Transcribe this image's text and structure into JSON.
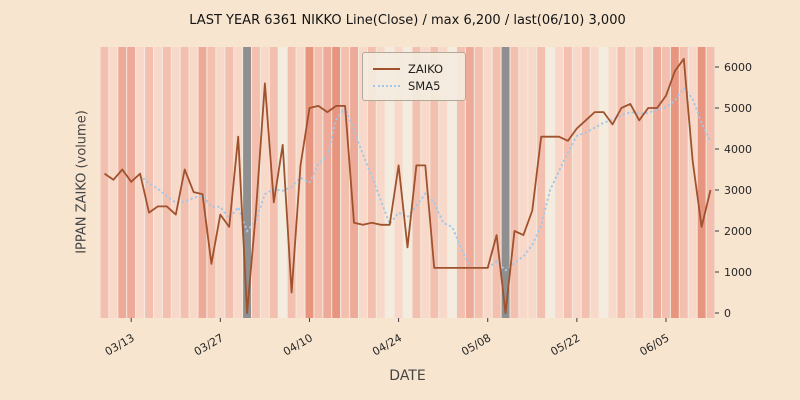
{
  "chart_data": {
    "type": "line",
    "title": "LAST YEAR 6361 NIKKO Line(Close) / max 6,200 / last(06/10) 3,000",
    "xlabel": "DATE",
    "ylabel": "IPPAN ZAIKO (volume)",
    "ylim": [
      0,
      6500
    ],
    "yticks": [
      0,
      1000,
      2000,
      3000,
      4000,
      5000,
      6000
    ],
    "xticks": [
      "03/13",
      "03/27",
      "04/10",
      "04/24",
      "05/08",
      "05/22",
      "06/05"
    ],
    "legend_position": "upper center",
    "grid": false,
    "max_value": 6200,
    "last_point": {
      "date": "06/10",
      "value": 3000
    },
    "x": [
      "03/08",
      "03/09",
      "03/10",
      "03/13",
      "03/14",
      "03/15",
      "03/16",
      "03/17",
      "03/20",
      "03/21",
      "03/22",
      "03/23",
      "03/24",
      "03/27",
      "03/28",
      "03/29",
      "03/30",
      "03/31",
      "04/03",
      "04/04",
      "04/05",
      "04/06",
      "04/07",
      "04/10",
      "04/11",
      "04/12",
      "04/13",
      "04/14",
      "04/17",
      "04/18",
      "04/19",
      "04/20",
      "04/21",
      "04/24",
      "04/25",
      "04/26",
      "04/27",
      "04/28",
      "05/01",
      "05/02",
      "05/03",
      "05/04",
      "05/05",
      "05/08",
      "05/09",
      "05/10",
      "05/11",
      "05/12",
      "05/15",
      "05/16",
      "05/17",
      "05/18",
      "05/19",
      "05/22",
      "05/23",
      "05/24",
      "05/25",
      "05/26",
      "05/29",
      "05/30",
      "05/31",
      "06/01",
      "06/02",
      "06/05",
      "06/06",
      "06/07",
      "06/08",
      "06/09",
      "06/10"
    ],
    "series": [
      {
        "name": "ZAIKO",
        "style": "solid",
        "color": "#a0522d",
        "values": [
          3400,
          3250,
          3500,
          3200,
          3400,
          2450,
          2600,
          2600,
          2400,
          3500,
          2950,
          2900,
          1200,
          2400,
          2100,
          4300,
          0,
          2500,
          5600,
          2700,
          4100,
          500,
          3600,
          5000,
          5050,
          4900,
          5050,
          5050,
          2200,
          2150,
          2200,
          2150,
          2150,
          3600,
          1600,
          3600,
          3600,
          1100,
          1100,
          1100,
          1100,
          1100,
          1100,
          1100,
          1900,
          0,
          2000,
          1900,
          2500,
          4300,
          4300,
          4300,
          4200,
          4500,
          4700,
          4900,
          4900,
          4600,
          5000,
          5100,
          4700,
          5000,
          5000,
          5300,
          5900,
          6200,
          3700,
          2100,
          3000
        ]
      },
      {
        "name": "SMA5",
        "style": "dotted",
        "color": "#a3c7e8",
        "derived_from": "ZAIKO",
        "window": 5
      }
    ],
    "bands": [
      2,
      1,
      3,
      3,
      1,
      2,
      1,
      2,
      1,
      2,
      1,
      3,
      2,
      1,
      2,
      1,
      "g",
      2,
      1,
      2,
      0,
      2,
      1,
      4,
      2,
      3,
      4,
      2,
      3,
      1,
      2,
      1,
      0,
      1,
      0,
      2,
      1,
      2,
      1,
      0,
      2,
      3,
      2,
      1,
      2,
      "g",
      2,
      1,
      1,
      2,
      0,
      1,
      2,
      1,
      2,
      1,
      0,
      1,
      2,
      1,
      2,
      1,
      3,
      2,
      4,
      2,
      1,
      4,
      2
    ],
    "band_palette": {
      "0": "#f3ecdf",
      "1": "#f8d8c9",
      "2": "#f3c0b0",
      "3": "#edaa98",
      "4": "#e89580",
      "g": "#8f8f8f"
    },
    "gray_bar_dates": [
      "03/30",
      "05/10"
    ],
    "colors": {
      "page_bg": "#f7e5cf",
      "plot_bg": "#f2ebdf",
      "tick_text": "#262626",
      "axis_label_text": "#454545"
    }
  }
}
